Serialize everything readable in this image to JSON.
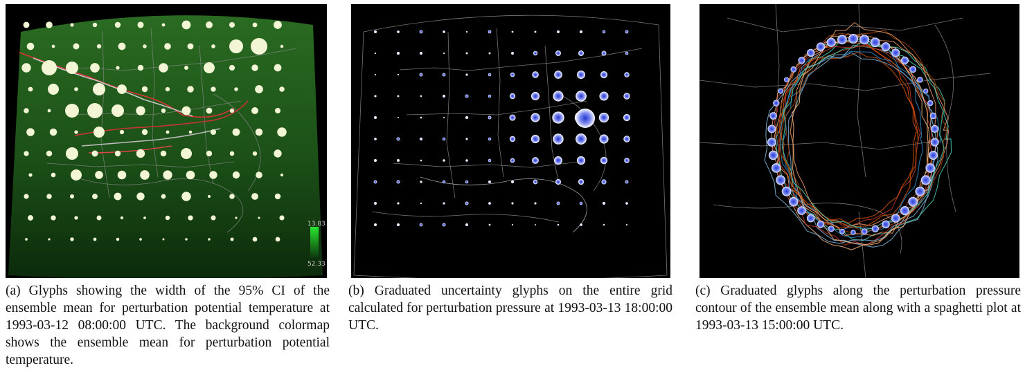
{
  "figure": {
    "panels": [
      {
        "id": "a",
        "caption": "(a) Glyphs showing the width of the 95% CI of the ensemble mean for perturbation potential temperature at 1993-03-12 08:00:00 UTC. The background colormap shows the ensemble mean for perturbation potential temperature.",
        "colorbar": {
          "max_label": "13.83",
          "min_label": "52.33",
          "colors": [
            "#29e62e",
            "#0d3a0e"
          ]
        },
        "colors": {
          "background": "#000000",
          "field": "#1d5a18",
          "glyph": "#f2f6d4",
          "map_lines": "#9a9a9a"
        }
      },
      {
        "id": "b",
        "caption": "(b) Graduated uncertainty glyphs on the entire grid calculated for perturbation pressure at 1993-03-13 18:00:00 UTC.",
        "colors": {
          "background": "#000000",
          "glyph_center": "#3545d8",
          "glyph_edge": "#ffffff",
          "map_lines": "#9a9a9a"
        }
      },
      {
        "id": "c",
        "caption": "(c) Graduated glyphs along the perturbation pressure contour of the ensemble mean along with a spaghetti plot at 1993-03-13 15:00:00 UTC.",
        "colors": {
          "background": "#000000",
          "glyph_center": "#3b4ee0",
          "glyph_edge": "#e8ecff",
          "map_lines": "#9a9a9a",
          "spaghetti": [
            "#c0392b",
            "#d35400",
            "#2e86c1",
            "#7fb3d5",
            "#a04000",
            "#f0b27a",
            "#48c9b0",
            "#e59866"
          ]
        }
      }
    ]
  }
}
